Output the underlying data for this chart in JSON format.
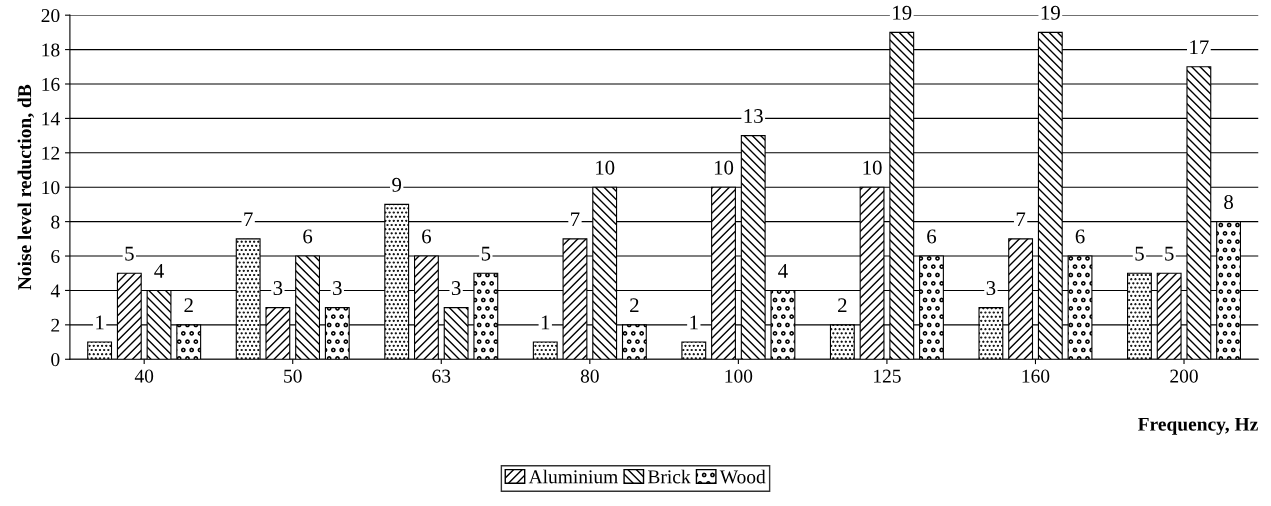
{
  "chart_data": {
    "type": "bar",
    "xlabel": "Frequency, Hz",
    "ylabel": "Noise level reduction, dB",
    "categories": [
      "40",
      "50",
      "63",
      "80",
      "100",
      "125",
      "160",
      "200"
    ],
    "series": [
      {
        "color": "#000000",
        "values": [
          1,
          7,
          9,
          1,
          1,
          2,
          3,
          5
        ]
      },
      {
        "name": "Aluminium",
        "color": "#000000",
        "values": [
          5,
          3,
          6,
          7,
          10,
          10,
          7,
          5
        ]
      },
      {
        "name": "Brick",
        "color": "#000000",
        "values": [
          4,
          6,
          3,
          10,
          13,
          19,
          19,
          17
        ]
      },
      {
        "name": "Wood",
        "color": "#000000",
        "values": [
          2,
          3,
          5,
          2,
          4,
          6,
          6,
          8
        ]
      }
    ],
    "ylim": [
      0,
      20
    ],
    "yticks": [
      0,
      2,
      4,
      6,
      8,
      10,
      12,
      14,
      16,
      18,
      20
    ],
    "grid": "y",
    "legend": "bottom",
    "data_labels": true
  }
}
